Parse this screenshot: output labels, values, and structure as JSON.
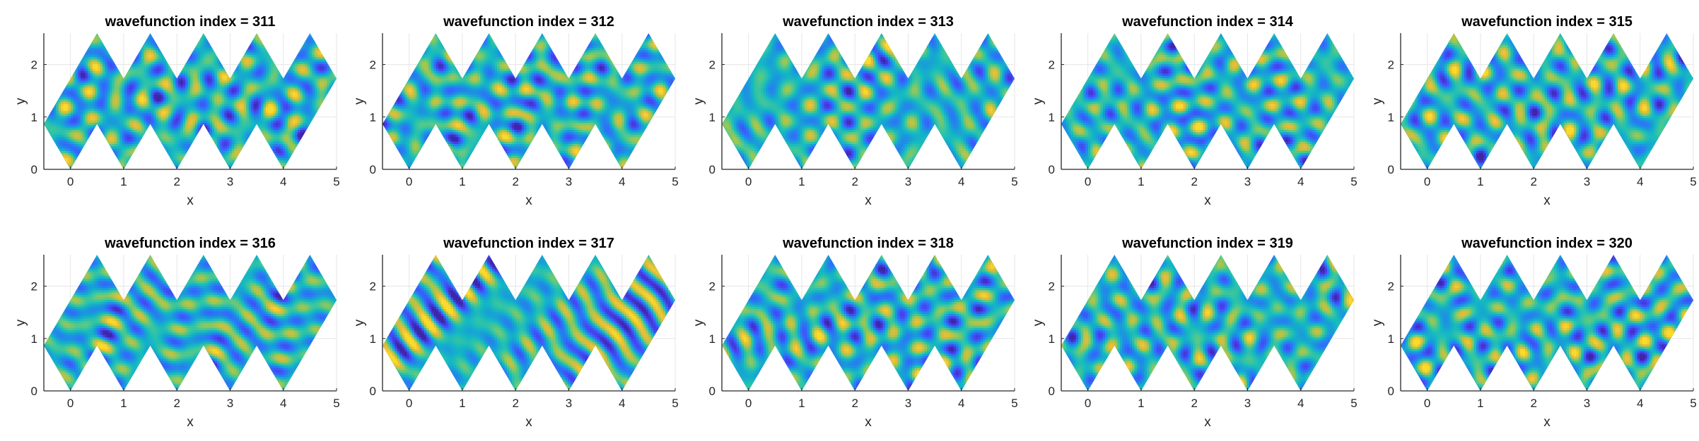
{
  "figure": {
    "background": "#ffffff",
    "axis_color": "#262626",
    "grid_color": "#e6e6e6",
    "colormap": [
      "#3e26a8",
      "#4743f0",
      "#2f6ffb",
      "#1a98dd",
      "#14b9c2",
      "#3fc79a",
      "#9dc751",
      "#e5bb3a",
      "#f9dc2a"
    ]
  },
  "chart_data": [
    {
      "type": "heatmap",
      "title": "wavefunction index = 311",
      "index": 311,
      "xlabel": "x",
      "ylabel": "y",
      "xlim": [
        -0.5,
        5
      ],
      "ylim": [
        0,
        2.6
      ],
      "xticks": [
        0,
        1,
        2,
        3,
        4,
        5
      ],
      "yticks": [
        0,
        1,
        2
      ],
      "grid": true,
      "colormap": "parula",
      "region": "zigzag strip of rhombi between y = 0 and y = 2.6"
    },
    {
      "type": "heatmap",
      "title": "wavefunction index = 312",
      "index": 312,
      "xlabel": "x",
      "ylabel": "y",
      "xlim": [
        -0.5,
        5
      ],
      "ylim": [
        0,
        2.6
      ],
      "xticks": [
        0,
        1,
        2,
        3,
        4,
        5
      ],
      "yticks": [
        0,
        1,
        2
      ],
      "grid": true,
      "colormap": "parula",
      "region": "zigzag strip of rhombi between y = 0 and y = 2.6"
    },
    {
      "type": "heatmap",
      "title": "wavefunction index = 313",
      "index": 313,
      "xlabel": "x",
      "ylabel": "y",
      "xlim": [
        -0.5,
        5
      ],
      "ylim": [
        0,
        2.6
      ],
      "xticks": [
        0,
        1,
        2,
        3,
        4,
        5
      ],
      "yticks": [
        0,
        1,
        2
      ],
      "grid": true,
      "colormap": "parula",
      "region": "zigzag strip of rhombi between y = 0 and y = 2.6"
    },
    {
      "type": "heatmap",
      "title": "wavefunction index = 314",
      "index": 314,
      "xlabel": "x",
      "ylabel": "y",
      "xlim": [
        -0.5,
        5
      ],
      "ylim": [
        0,
        2.6
      ],
      "xticks": [
        0,
        1,
        2,
        3,
        4,
        5
      ],
      "yticks": [
        0,
        1,
        2
      ],
      "grid": true,
      "colormap": "parula",
      "region": "zigzag strip of rhombi between y = 0 and y = 2.6"
    },
    {
      "type": "heatmap",
      "title": "wavefunction index = 315",
      "index": 315,
      "xlabel": "x",
      "ylabel": "y",
      "xlim": [
        -0.5,
        5
      ],
      "ylim": [
        0,
        2.6
      ],
      "xticks": [
        0,
        1,
        2,
        3,
        4,
        5
      ],
      "yticks": [
        0,
        1,
        2
      ],
      "grid": true,
      "colormap": "parula",
      "region": "zigzag strip of rhombi between y = 0 and y = 2.6"
    },
    {
      "type": "heatmap",
      "title": "wavefunction index = 316",
      "index": 316,
      "xlabel": "x",
      "ylabel": "y",
      "xlim": [
        -0.5,
        5
      ],
      "ylim": [
        0,
        2.6
      ],
      "xticks": [
        0,
        1,
        2,
        3,
        4,
        5
      ],
      "yticks": [
        0,
        1,
        2
      ],
      "grid": true,
      "colormap": "parula",
      "region": "zigzag strip of rhombi between y = 0 and y = 2.6"
    },
    {
      "type": "heatmap",
      "title": "wavefunction index = 317",
      "index": 317,
      "xlabel": "x",
      "ylabel": "y",
      "xlim": [
        -0.5,
        5
      ],
      "ylim": [
        0,
        2.6
      ],
      "xticks": [
        0,
        1,
        2,
        3,
        4,
        5
      ],
      "yticks": [
        0,
        1,
        2
      ],
      "grid": true,
      "colormap": "parula",
      "region": "zigzag strip of rhombi between y = 0 and y = 2.6"
    },
    {
      "type": "heatmap",
      "title": "wavefunction index = 318",
      "index": 318,
      "xlabel": "x",
      "ylabel": "y",
      "xlim": [
        -0.5,
        5
      ],
      "ylim": [
        0,
        2.6
      ],
      "xticks": [
        0,
        1,
        2,
        3,
        4,
        5
      ],
      "yticks": [
        0,
        1,
        2
      ],
      "grid": true,
      "colormap": "parula",
      "region": "zigzag strip of rhombi between y = 0 and y = 2.6"
    },
    {
      "type": "heatmap",
      "title": "wavefunction index = 319",
      "index": 319,
      "xlabel": "x",
      "ylabel": "y",
      "xlim": [
        -0.5,
        5
      ],
      "ylim": [
        0,
        2.6
      ],
      "xticks": [
        0,
        1,
        2,
        3,
        4,
        5
      ],
      "yticks": [
        0,
        1,
        2
      ],
      "grid": true,
      "colormap": "parula",
      "region": "zigzag strip of rhombi between y = 0 and y = 2.6"
    },
    {
      "type": "heatmap",
      "title": "wavefunction index = 320",
      "index": 320,
      "xlabel": "x",
      "ylabel": "y",
      "xlim": [
        -0.5,
        5
      ],
      "ylim": [
        0,
        2.6
      ],
      "xticks": [
        0,
        1,
        2,
        3,
        4,
        5
      ],
      "yticks": [
        0,
        1,
        2
      ],
      "grid": true,
      "colormap": "parula",
      "region": "zigzag strip of rhombi between y = 0 and y = 2.6"
    }
  ]
}
